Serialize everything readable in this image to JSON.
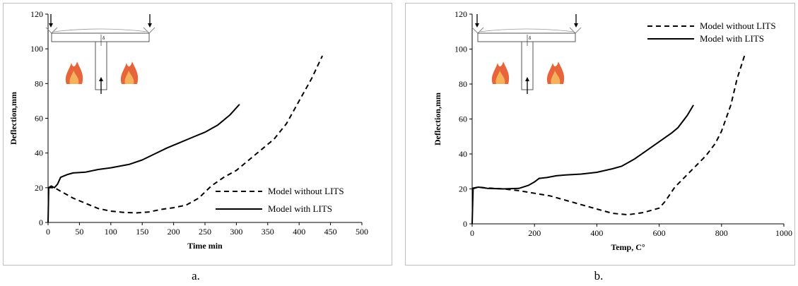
{
  "chart_data": [
    {
      "type": "line",
      "panel_label": "a.",
      "xlabel": "Time min",
      "ylabel": "Deflection,mm",
      "xlim": [
        0,
        500
      ],
      "ylim": [
        0,
        120
      ],
      "x_ticks": [
        0,
        50,
        100,
        150,
        200,
        250,
        300,
        350,
        400,
        450,
        500
      ],
      "y_ticks": [
        0,
        20,
        40,
        60,
        80,
        100,
        120
      ],
      "grid": false,
      "legend_position": "bottom-right",
      "series": [
        {
          "name": "Model without LITS",
          "style": "dashed",
          "color": "#000000",
          "points": [
            [
              0,
              20
            ],
            [
              10,
              20
            ],
            [
              25,
              17
            ],
            [
              40,
              14
            ],
            [
              60,
              11
            ],
            [
              80,
              8
            ],
            [
              100,
              6.5
            ],
            [
              120,
              5.8
            ],
            [
              140,
              5.5
            ],
            [
              160,
              6
            ],
            [
              180,
              7.5
            ],
            [
              200,
              8.5
            ],
            [
              220,
              10
            ],
            [
              240,
              14
            ],
            [
              260,
              21
            ],
            [
              280,
              26
            ],
            [
              300,
              30
            ],
            [
              320,
              36
            ],
            [
              340,
              42
            ],
            [
              360,
              48
            ],
            [
              380,
              57
            ],
            [
              400,
              70
            ],
            [
              420,
              83
            ],
            [
              437,
              96
            ]
          ]
        },
        {
          "name": "Model with LITS",
          "style": "solid",
          "color": "#000000",
          "points": [
            [
              0,
              0
            ],
            [
              1,
              20
            ],
            [
              5,
              21
            ],
            [
              10,
              20
            ],
            [
              15,
              22
            ],
            [
              20,
              26
            ],
            [
              30,
              27.5
            ],
            [
              40,
              28.5
            ],
            [
              60,
              29
            ],
            [
              80,
              30.5
            ],
            [
              100,
              31.5
            ],
            [
              130,
              33.5
            ],
            [
              150,
              36
            ],
            [
              170,
              39.5
            ],
            [
              190,
              43
            ],
            [
              210,
              46
            ],
            [
              230,
              49
            ],
            [
              250,
              52
            ],
            [
              270,
              56
            ],
            [
              290,
              62
            ],
            [
              305,
              68
            ]
          ]
        }
      ]
    },
    {
      "type": "line",
      "panel_label": "b.",
      "xlabel": "Temp, C°",
      "ylabel": "Deflection,mm",
      "xlim": [
        0,
        1000
      ],
      "ylim": [
        0,
        120
      ],
      "x_ticks": [
        0,
        200,
        400,
        600,
        800,
        1000
      ],
      "y_ticks": [
        0,
        20,
        40,
        60,
        80,
        100,
        120
      ],
      "grid": false,
      "legend_position": "top-right",
      "series": [
        {
          "name": "Model without LITS",
          "style": "dashed",
          "color": "#000000",
          "points": [
            [
              0,
              20
            ],
            [
              20,
              21
            ],
            [
              50,
              20.5
            ],
            [
              100,
              20
            ],
            [
              150,
              19
            ],
            [
              200,
              17.5
            ],
            [
              250,
              16
            ],
            [
              300,
              13.5
            ],
            [
              350,
              11
            ],
            [
              400,
              8.5
            ],
            [
              450,
              6
            ],
            [
              500,
              5.2
            ],
            [
              550,
              6.5
            ],
            [
              600,
              9
            ],
            [
              620,
              13
            ],
            [
              650,
              21
            ],
            [
              700,
              30
            ],
            [
              750,
              39
            ],
            [
              780,
              46
            ],
            [
              800,
              53
            ],
            [
              830,
              68
            ],
            [
              850,
              83
            ],
            [
              875,
              97
            ]
          ]
        },
        {
          "name": "Model with LITS",
          "style": "solid",
          "color": "#000000",
          "points": [
            [
              0,
              0
            ],
            [
              3,
              20.5
            ],
            [
              20,
              21
            ],
            [
              50,
              20.3
            ],
            [
              100,
              20
            ],
            [
              150,
              20.3
            ],
            [
              180,
              22
            ],
            [
              200,
              24
            ],
            [
              215,
              26
            ],
            [
              240,
              26.5
            ],
            [
              270,
              27.5
            ],
            [
              300,
              28
            ],
            [
              350,
              28.5
            ],
            [
              400,
              29.5
            ],
            [
              450,
              31.5
            ],
            [
              480,
              33
            ],
            [
              520,
              37
            ],
            [
              560,
              42
            ],
            [
              600,
              47
            ],
            [
              640,
              52
            ],
            [
              660,
              55
            ],
            [
              690,
              62
            ],
            [
              710,
              68
            ]
          ]
        }
      ]
    }
  ]
}
